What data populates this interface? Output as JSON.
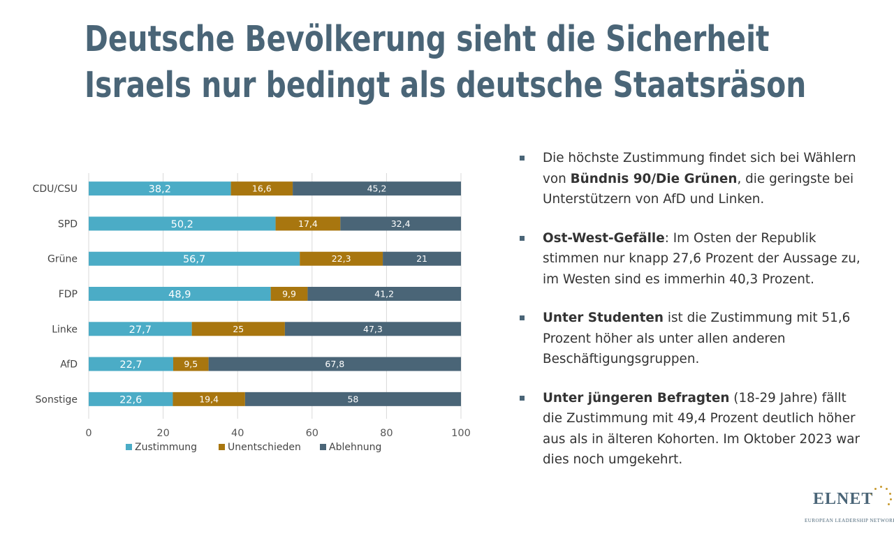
{
  "slide": {
    "title_line1": "Deutsche Bevölkerung sieht die Sicherheit",
    "title_line2": "Israels nur bedingt als deutsche Staatsräson"
  },
  "colors": {
    "title": "#4a6577",
    "zustimmung": "#4bacc6",
    "unentschieden": "#a8760f",
    "ablehnung": "#4a6577"
  },
  "chart_data": {
    "type": "bar",
    "orientation": "horizontal",
    "stacked": true,
    "categories": [
      "CDU/CSU",
      "SPD",
      "Grüne",
      "FDP",
      "Linke",
      "AfD",
      "Sonstige"
    ],
    "series": [
      {
        "name": "Zustimmung",
        "values": [
          38.2,
          50.2,
          56.7,
          48.9,
          27.7,
          22.7,
          22.6
        ],
        "labels": [
          "38,2",
          "50,2",
          "56,7",
          "48,9",
          "27,7",
          "22,7",
          "22,6"
        ]
      },
      {
        "name": "Unentschieden",
        "values": [
          16.6,
          17.4,
          22.3,
          9.9,
          25,
          9.5,
          19.4
        ],
        "labels": [
          "16,6",
          "17,4",
          "22,3",
          "9,9",
          "25",
          "9,5",
          "19,4"
        ]
      },
      {
        "name": "Ablehnung",
        "values": [
          45.2,
          32.4,
          21,
          41.2,
          47.3,
          67.8,
          58
        ],
        "labels": [
          "45,2",
          "32,4",
          "21",
          "41,2",
          "47,3",
          "67,8",
          "58"
        ]
      }
    ],
    "xlim": [
      0,
      100
    ],
    "xticks": [
      "0",
      "20",
      "40",
      "60",
      "80",
      "100"
    ],
    "grid": true,
    "legend_position": "bottom"
  },
  "bullets": [
    {
      "pre": "Die höchste Zustimmung findet sich bei Wählern von ",
      "bold": "Bündnis 90/Die Grünen",
      "post": ", die geringste bei Unterstützern von AfD und Linken."
    },
    {
      "pre": "",
      "bold": "Ost-West-Gefälle",
      "post": ": Im Osten der Republik stimmen nur knapp 27,6 Prozent der Aussage zu, im Westen sind es immerhin 40,3 Prozent."
    },
    {
      "pre": "",
      "bold": "Unter Studenten",
      "post": " ist die Zustimmung mit 51,6 Prozent höher als unter allen anderen Beschäftigungsgruppen."
    },
    {
      "pre": "",
      "bold": "Unter jüngeren Befragten",
      "post": " (18-29 Jahre) fällt die Zustimmung mit 49,4 Prozent deutlich höher aus als in älteren Kohorten. Im Oktober 2023 war dies noch umgekehrt."
    }
  ],
  "logo": {
    "name": "ELNET",
    "tagline": "EUROPEAN LEADERSHIP NETWORK"
  }
}
